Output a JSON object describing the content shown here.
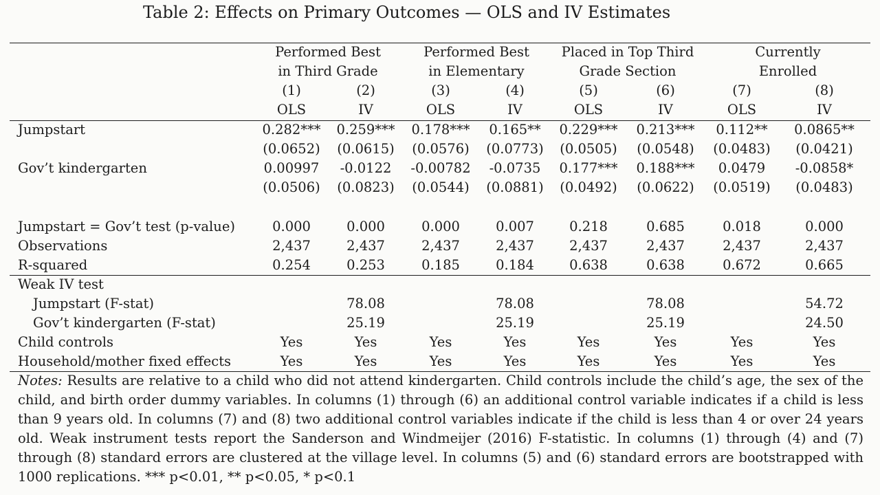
{
  "title": "Table 2: Effects on Primary Outcomes — OLS and IV Estimates",
  "groups": [
    {
      "line1": "Performed Best",
      "line2": "in Third Grade"
    },
    {
      "line1": "Performed Best",
      "line2": "in Elementary"
    },
    {
      "line1": "Placed in Top Third",
      "line2": "Grade Section"
    },
    {
      "line1": "Currently",
      "line2": "Enrolled"
    }
  ],
  "col_numbers": [
    "(1)",
    "(2)",
    "(3)",
    "(4)",
    "(5)",
    "(6)",
    "(7)",
    "(8)"
  ],
  "col_methods": [
    "OLS",
    "IV",
    "OLS",
    "IV",
    "OLS",
    "IV",
    "OLS",
    "IV"
  ],
  "rows": [
    {
      "label": "Jumpstart",
      "values": [
        "0.282***",
        "0.259***",
        "0.178***",
        "0.165**",
        "0.229***",
        "0.213***",
        "0.112**",
        "0.0865**"
      ]
    },
    {
      "label": "",
      "values": [
        "(0.0652)",
        "(0.0615)",
        "(0.0576)",
        "(0.0773)",
        "(0.0505)",
        "(0.0548)",
        "(0.0483)",
        "(0.0421)"
      ]
    },
    {
      "label": "Gov’t kindergarten",
      "values": [
        "0.00997",
        "-0.0122",
        "-0.00782",
        "-0.0735",
        "0.177***",
        "0.188***",
        "0.0479",
        "-0.0858*"
      ]
    },
    {
      "label": "",
      "values": [
        "(0.0506)",
        "(0.0823)",
        "(0.0544)",
        "(0.0881)",
        "(0.0492)",
        "(0.0622)",
        "(0.0519)",
        "(0.0483)"
      ]
    },
    {
      "label": "Jumpstart = Gov’t test (p-value)",
      "values": [
        "0.000",
        "0.000",
        "0.000",
        "0.007",
        "0.218",
        "0.685",
        "0.018",
        "0.000"
      ]
    },
    {
      "label": "Observations",
      "values": [
        "2,437",
        "2,437",
        "2,437",
        "2,437",
        "2,437",
        "2,437",
        "2,437",
        "2,437"
      ]
    },
    {
      "label": "R-squared",
      "values": [
        "0.254",
        "0.253",
        "0.185",
        "0.184",
        "0.638",
        "0.638",
        "0.672",
        "0.665"
      ]
    },
    {
      "label": "Weak IV test",
      "values": [
        "",
        "",
        "",
        "",
        "",
        "",
        "",
        ""
      ]
    },
    {
      "label": "Jumpstart (F-stat)",
      "values": [
        "",
        "78.08",
        "",
        "78.08",
        "",
        "78.08",
        "",
        "54.72"
      ]
    },
    {
      "label": "Gov’t kindergarten (F-stat)",
      "values": [
        "",
        "25.19",
        "",
        "25.19",
        "",
        "25.19",
        "",
        "24.50"
      ]
    },
    {
      "label": "Child controls",
      "values": [
        "Yes",
        "Yes",
        "Yes",
        "Yes",
        "Yes",
        "Yes",
        "Yes",
        "Yes"
      ]
    },
    {
      "label": "Household/mother fixed effects",
      "values": [
        "Yes",
        "Yes",
        "Yes",
        "Yes",
        "Yes",
        "Yes",
        "Yes",
        "Yes"
      ]
    }
  ],
  "notes": {
    "label": "Notes:",
    "text": "Results are relative to a child who did not attend kindergarten. Child controls include the child’s age, the sex of the child, and birth order dummy variables. In columns (1) through (6) an additional control variable indicates if a child is less than 9 years old. In columns (7) and (8) two additional control variables indicate if the child is less than 4 or over 24 years old. Weak instrument tests report the Sanderson and Windmeijer (2016) F-statistic. In columns (1) through (4) and (7) through (8) standard errors are clustered at the village level. In columns (5) and (6) standard errors are bootstrapped with 1000 replications. *** p<0.01, ** p<0.05, * p<0.1"
  }
}
